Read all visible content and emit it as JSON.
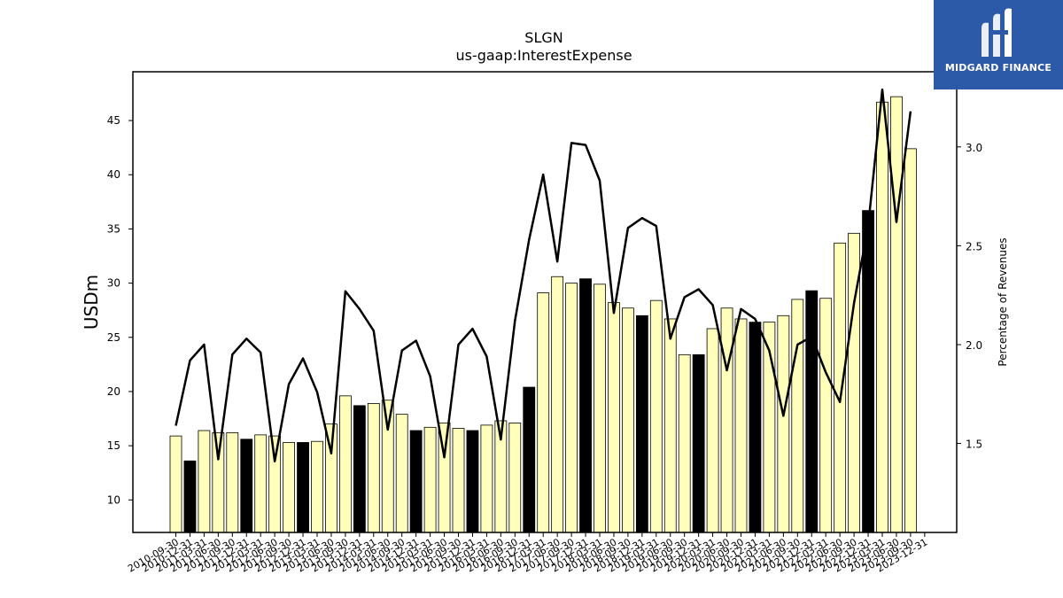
{
  "brand": {
    "name": "MIDGARD FINANCE",
    "bg_color": "#2d5aa8"
  },
  "chart_data": {
    "type": "bar",
    "title": "SLGN",
    "subtitle": "us-gaap:InterestExpense",
    "ylabel": "USDm",
    "y2label": "Percentage of Revenues",
    "ylim": [
      7,
      49.5
    ],
    "y2lim": [
      1.05,
      3.38
    ],
    "yticks": [
      10,
      15,
      20,
      25,
      30,
      35,
      40,
      45
    ],
    "y2ticks": [
      1.5,
      2.0,
      2.5,
      3.0
    ],
    "grid": false,
    "bar_colors": {
      "quarter": "#ffffbb",
      "year_end": "#000000"
    },
    "categories": [
      "2010-09-30",
      "2010-12-31",
      "2011-03-31",
      "2011-06-30",
      "2011-09-30",
      "2011-12-31",
      "2012-03-31",
      "2012-06-30",
      "2012-09-30",
      "2012-12-31",
      "2013-03-31",
      "2013-06-30",
      "2013-09-30",
      "2013-12-31",
      "2014-03-31",
      "2014-06-30",
      "2014-09-30",
      "2014-12-31",
      "2015-03-31",
      "2015-06-30",
      "2015-09-30",
      "2015-12-31",
      "2016-03-31",
      "2016-06-30",
      "2016-09-30",
      "2016-12-31",
      "2017-03-31",
      "2017-06-30",
      "2017-09-30",
      "2017-12-31",
      "2018-03-31",
      "2018-06-30",
      "2018-09-30",
      "2018-12-31",
      "2019-03-31",
      "2019-06-30",
      "2019-09-30",
      "2019-12-31",
      "2020-03-31",
      "2020-06-30",
      "2020-09-30",
      "2020-12-31",
      "2021-03-31",
      "2021-06-30",
      "2021-09-30",
      "2021-12-31",
      "2022-03-31",
      "2022-06-30",
      "2022-09-30",
      "2022-12-31",
      "2023-03-31",
      "2023-06-30",
      "2023-09-30",
      "2023-12-31"
    ],
    "series": [
      {
        "type": "bar",
        "values": [
          15.9,
          13.6,
          16.4,
          16.2,
          16.2,
          15.6,
          16.0,
          15.9,
          15.3,
          15.3,
          15.4,
          17.0,
          19.6,
          18.7,
          18.9,
          19.2,
          17.9,
          16.4,
          16.7,
          17.1,
          16.6,
          16.4,
          16.9,
          17.3,
          17.1,
          20.4,
          29.1,
          30.6,
          30.0,
          30.4,
          29.9,
          28.2,
          27.7,
          27.0,
          28.4,
          26.7,
          23.4,
          23.4,
          25.8,
          27.7,
          26.7,
          26.4,
          26.4,
          27.0,
          28.5,
          29.3,
          28.6,
          33.7,
          34.6,
          36.7,
          46.7,
          47.2,
          42.4,
          null
        ]
      },
      {
        "type": "line",
        "axis": "right",
        "color": "#000000",
        "values": [
          1.59,
          1.92,
          2.0,
          1.42,
          1.95,
          2.03,
          1.96,
          1.41,
          1.8,
          1.93,
          1.76,
          1.45,
          2.27,
          2.18,
          2.07,
          1.57,
          1.97,
          2.02,
          1.84,
          1.43,
          2.0,
          2.08,
          1.94,
          1.52,
          2.12,
          2.53,
          2.86,
          2.42,
          3.02,
          3.01,
          2.83,
          2.16,
          2.59,
          2.64,
          2.6,
          2.03,
          2.24,
          2.28,
          2.2,
          1.87,
          2.18,
          2.13,
          1.97,
          1.64,
          2.0,
          2.04,
          1.86,
          1.71,
          2.21,
          2.6,
          3.29,
          2.62,
          3.18,
          null
        ]
      }
    ]
  }
}
